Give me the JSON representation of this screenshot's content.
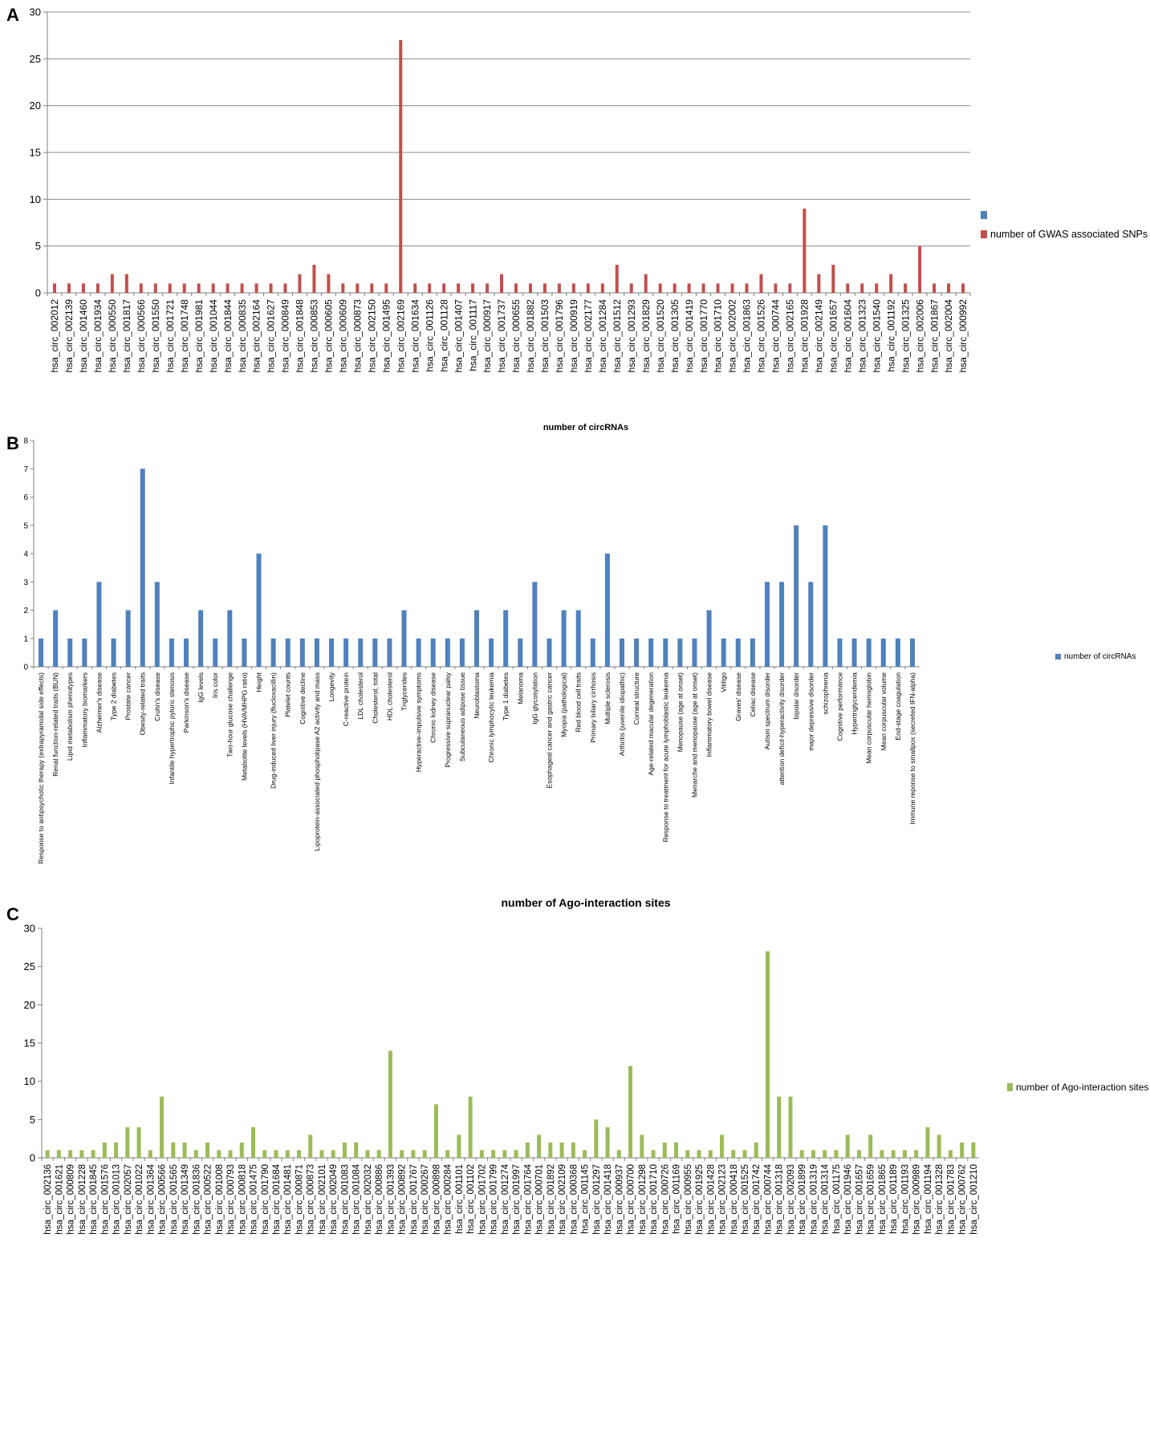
{
  "panels": {
    "a": {
      "letter": "A"
    },
    "b": {
      "letter": "B",
      "title": "number of circRNAs"
    },
    "c": {
      "letter": "C",
      "title": "number of Ago-interaction sites"
    }
  },
  "legend": {
    "a_blank": "",
    "a_series": "number of GWAS associated SNPs",
    "b_series": "number of circRNAs",
    "c_series": "number of Ago-interaction sites"
  },
  "colors": {
    "red": "#c0504d",
    "blue": "#4f81bd",
    "green": "#9bbb59",
    "grid": "#8c8c8c",
    "axis": "#7f7f7f"
  },
  "chart_data": [
    {
      "type": "bar",
      "panel": "A",
      "title": "",
      "legend": [
        "",
        "number of GWAS associated SNPs"
      ],
      "ylim": [
        0,
        30
      ],
      "yticks": [
        0,
        5,
        10,
        15,
        20,
        25,
        30
      ],
      "grid": true,
      "categories": [
        "hsa_circ_002012",
        "hsa_circ_002139",
        "hsa_circ_001460",
        "hsa_circ_001934",
        "hsa_circ_000550",
        "hsa_circ_001817",
        "hsa_circ_000566",
        "hsa_circ_001550",
        "hsa_circ_001721",
        "hsa_circ_001748",
        "hsa_circ_001981",
        "hsa_circ_001044",
        "hsa_circ_001844",
        "hsa_circ_000835",
        "hsa_circ_002164",
        "hsa_circ_001627",
        "hsa_circ_000849",
        "hsa_circ_001848",
        "hsa_circ_000853",
        "hsa_circ_000605",
        "hsa_circ_000609",
        "hsa_circ_000873",
        "hsa_circ_002150",
        "hsa_circ_001495",
        "hsa_circ_002169",
        "hsa_circ_001634",
        "hsa_circ_001126",
        "hsa_circ_001128",
        "hsa_circ_001407",
        "hsa_circ_001117",
        "hsa_circ_000917",
        "hsa_circ_001737",
        "hsa_circ_000655",
        "hsa_circ_001882",
        "hsa_circ_001503",
        "hsa_circ_001796",
        "hsa_circ_000919",
        "hsa_circ_002177",
        "hsa_circ_001284",
        "hsa_circ_001512",
        "hsa_circ_001293",
        "hsa_circ_001829",
        "hsa_circ_001520",
        "hsa_circ_001305",
        "hsa_circ_001419",
        "hsa_circ_001770",
        "hsa_circ_001710",
        "hsa_circ_002002",
        "hsa_circ_001863",
        "hsa_circ_001526",
        "hsa_circ_000744",
        "hsa_circ_002165",
        "hsa_circ_001928",
        "hsa_circ_002149",
        "hsa_circ_001657",
        "hsa_circ_001604",
        "hsa_circ_001323",
        "hsa_circ_001540",
        "hsa_circ_001192",
        "hsa_circ_001325",
        "hsa_circ_002006",
        "hsa_circ_001867",
        "hsa_circ_002004",
        "hsa_circ_000992"
      ],
      "values": [
        1,
        1,
        1,
        1,
        2,
        2,
        1,
        1,
        1,
        1,
        1,
        1,
        1,
        1,
        1,
        1,
        1,
        2,
        3,
        2,
        1,
        1,
        1,
        1,
        27,
        1,
        1,
        1,
        1,
        1,
        1,
        2,
        1,
        1,
        1,
        1,
        1,
        1,
        1,
        3,
        1,
        2,
        1,
        1,
        1,
        1,
        1,
        1,
        1,
        2,
        1,
        1,
        9,
        2,
        3,
        1,
        1,
        1,
        2,
        1,
        5,
        1,
        1,
        1
      ]
    },
    {
      "type": "bar",
      "panel": "B",
      "title": "number of circRNAs",
      "legend": [
        "number of circRNAs"
      ],
      "ylim": [
        0,
        8
      ],
      "yticks": [
        0,
        1,
        2,
        3,
        4,
        5,
        6,
        7,
        8
      ],
      "grid": false,
      "categories": [
        "Response to antipsychotic therapy (extrapyramidal side effects)",
        "Renal function-related traits (BUN)",
        "Lipid metabolism phenotypes",
        "Inflammatory biomarkers",
        "Alzheimer's disease",
        "Type 2 diabetes",
        "Prostate cancer",
        "Obesity-related traits",
        "Crohn's disease",
        "Infantile hypertrophic pyloric stenosis",
        "Parkinson's disease",
        "IgG levels",
        "Iris color",
        "Two-hour glucose challenge",
        "Metabolite levels (HVA/MHPG ratio)",
        "Height",
        "Drug-induced liver injury (flucloxacillin)",
        "Platelet counts",
        "Cognitive decline",
        "Lipoprotein-associated phospholipase A2 activity and mass",
        "Longevity",
        "C-reactive protein",
        "LDL cholesterol",
        "Cholesterol, total",
        "HDL cholesterol",
        "Triglycerides",
        "Hyperactive-impulsive symptoms",
        "Chronic kidney disease",
        "Progressive supranuclear palsy",
        "Subcutaneous adipose tissue",
        "Neuroblastoma",
        "Chronic lymphocytic leukemia",
        "Type 1 diabetes",
        "Melanoma",
        "IgG glycosylation",
        "Esophageal cancer and gastric cancer",
        "Myopia (pathological)",
        "Red blood cell traits",
        "Primary biliary cirrhosis",
        "Multiple sclerosis",
        "Arthritis (juvenile idiopathic)",
        "Corneal structure",
        "Age-related macular degeneration",
        "Response to treatment for acute lymphoblastic leukemia",
        "Menopause (age at onset)",
        "Menarche and menopause (age at onset)",
        "Inflammatory bowel disease",
        "Vitiligo",
        "Graves' disease",
        "Celiac disease",
        "Autism spectrum disorder",
        "attention deficit-hyperactivity disorder",
        "bipolar disorder",
        "major depressive disorder",
        "schizophrenia",
        "Cognitive performance",
        "Hypertriglyceridemia",
        "Mean corpuscular hemoglobin",
        "Mean corpuscular volume",
        "End-stage coagulation",
        "Immune reponse to smallpox (secreted IFN-alpha)"
      ],
      "values": [
        1,
        2,
        1,
        1,
        3,
        1,
        2,
        7,
        3,
        1,
        1,
        2,
        1,
        2,
        1,
        4,
        1,
        1,
        1,
        1,
        1,
        1,
        1,
        1,
        1,
        2,
        1,
        1,
        1,
        1,
        2,
        1,
        2,
        1,
        3,
        1,
        2,
        2,
        1,
        4,
        1,
        1,
        1,
        1,
        1,
        1,
        2,
        1,
        1,
        1,
        3,
        3,
        5,
        3,
        5,
        1,
        1,
        1,
        1,
        1,
        1
      ]
    },
    {
      "type": "bar",
      "panel": "C",
      "title": "number of Ago-interaction sites",
      "legend": [
        "number of Ago-interaction sites"
      ],
      "ylim": [
        0,
        30
      ],
      "yticks": [
        0,
        5,
        10,
        15,
        20,
        25,
        30
      ],
      "grid": false,
      "categories": [
        "hsa_circ_002136",
        "hsa_circ_001621",
        "hsa_circ_000809",
        "hsa_circ_001228",
        "hsa_circ_001845",
        "hsa_circ_001576",
        "hsa_circ_001013",
        "hsa_circ_002057",
        "hsa_circ_001022",
        "hsa_circ_001364",
        "hsa_circ_000566",
        "hsa_circ_001565",
        "hsa_circ_001349",
        "hsa_circ_001836",
        "hsa_circ_000522",
        "hsa_circ_001008",
        "hsa_circ_000793",
        "hsa_circ_000818",
        "hsa_circ_001475",
        "hsa_circ_001790",
        "hsa_circ_001684",
        "hsa_circ_001481",
        "hsa_circ_000871",
        "hsa_circ_000873",
        "hsa_circ_002101",
        "hsa_circ_002049",
        "hsa_circ_001083",
        "hsa_circ_001084",
        "hsa_circ_002032",
        "hsa_circ_000886",
        "hsa_circ_001393",
        "hsa_circ_000892",
        "hsa_circ_001767",
        "hsa_circ_000267",
        "hsa_circ_000898",
        "hsa_circ_000284",
        "hsa_circ_001101",
        "hsa_circ_001102",
        "hsa_circ_001702",
        "hsa_circ_001799",
        "hsa_circ_001274",
        "hsa_circ_001997",
        "hsa_circ_001764",
        "hsa_circ_000701",
        "hsa_circ_001892",
        "hsa_circ_002109",
        "hsa_circ_000368",
        "hsa_circ_001145",
        "hsa_circ_001297",
        "hsa_circ_001418",
        "hsa_circ_000937",
        "hsa_circ_000700",
        "hsa_circ_001298",
        "hsa_circ_001710",
        "hsa_circ_000726",
        "hsa_circ_001169",
        "hsa_circ_000955",
        "hsa_circ_001925",
        "hsa_circ_001428",
        "hsa_circ_002123",
        "hsa_circ_000418",
        "hsa_circ_001525",
        "hsa_circ_001742",
        "hsa_circ_000744",
        "hsa_circ_001318",
        "hsa_circ_002093",
        "hsa_circ_001899",
        "hsa_circ_001319",
        "hsa_circ_001314",
        "hsa_circ_001175",
        "hsa_circ_001946",
        "hsa_circ_001657",
        "hsa_circ_001659",
        "hsa_circ_001865",
        "hsa_circ_001189",
        "hsa_circ_001193",
        "hsa_circ_000989",
        "hsa_circ_001194",
        "hsa_circ_001328",
        "hsa_circ_001783",
        "hsa_circ_000762",
        "hsa_circ_001210"
      ],
      "values": [
        1,
        1,
        1,
        1,
        1,
        2,
        2,
        4,
        4,
        1,
        8,
        2,
        2,
        1,
        2,
        1,
        1,
        2,
        4,
        1,
        1,
        1,
        1,
        3,
        1,
        1,
        2,
        2,
        1,
        1,
        14,
        1,
        1,
        1,
        7,
        1,
        3,
        8,
        1,
        1,
        1,
        1,
        2,
        3,
        2,
        2,
        2,
        1,
        5,
        4,
        1,
        12,
        3,
        1,
        2,
        2,
        1,
        1,
        1,
        3,
        1,
        1,
        2,
        27,
        8,
        8,
        1,
        1,
        1,
        1,
        3,
        1,
        3,
        1,
        1,
        1,
        1,
        4,
        3,
        1,
        2,
        2
      ]
    }
  ]
}
